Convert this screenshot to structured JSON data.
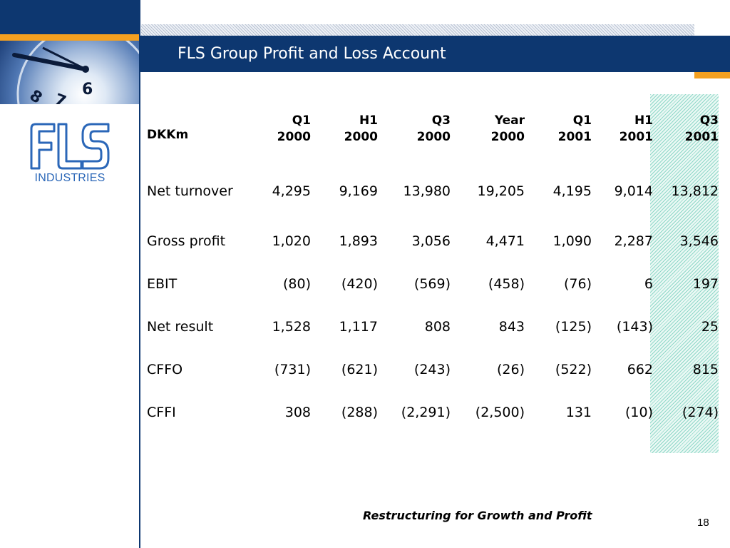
{
  "slide": {
    "title": "FLS Group Profit and Loss Account",
    "footer": "Restructuring for Growth and Profit",
    "page_number": "18"
  },
  "logo": {
    "mark": "FLS",
    "subtitle": "INDUSTRIES",
    "color": "#2b67b8"
  },
  "colors": {
    "navy": "#0d3770",
    "orange": "#f4a020",
    "highlight": "#8fd8c8"
  },
  "table": {
    "unit_header": "DKKm",
    "columns": [
      {
        "line1": "Q1",
        "line2": "2000"
      },
      {
        "line1": "H1",
        "line2": "2000"
      },
      {
        "line1": "Q3",
        "line2": "2000"
      },
      {
        "line1": "Year",
        "line2": "2000"
      },
      {
        "line1": "Q1",
        "line2": "2001"
      },
      {
        "line1": "H1",
        "line2": "2001"
      },
      {
        "line1": "Q3",
        "line2": "2001"
      }
    ],
    "rows": [
      {
        "label": "Net turnover",
        "values": [
          "4,295",
          "9,169",
          "13,980",
          "19,205",
          "4,195",
          "9,014",
          "13,812"
        ]
      },
      {
        "label": "Gross profit",
        "values": [
          "1,020",
          "1,893",
          "3,056",
          "4,471",
          "1,090",
          "2,287",
          "3,546"
        ]
      },
      {
        "label": "EBIT",
        "values": [
          "(80)",
          "(420)",
          "(569)",
          "(458)",
          "(76)",
          "6",
          "197"
        ]
      },
      {
        "label": "Net result",
        "values": [
          "1,528",
          "1,117",
          "808",
          "843",
          "(125)",
          "(143)",
          "25"
        ]
      },
      {
        "label": "CFFO",
        "values": [
          "(731)",
          "(621)",
          "(243)",
          "(26)",
          "(522)",
          "662",
          "815"
        ]
      },
      {
        "label": "CFFI",
        "values": [
          "308",
          "(288)",
          "(2,291)",
          "(2,500)",
          "131",
          "(10)",
          "(274)"
        ]
      }
    ]
  }
}
